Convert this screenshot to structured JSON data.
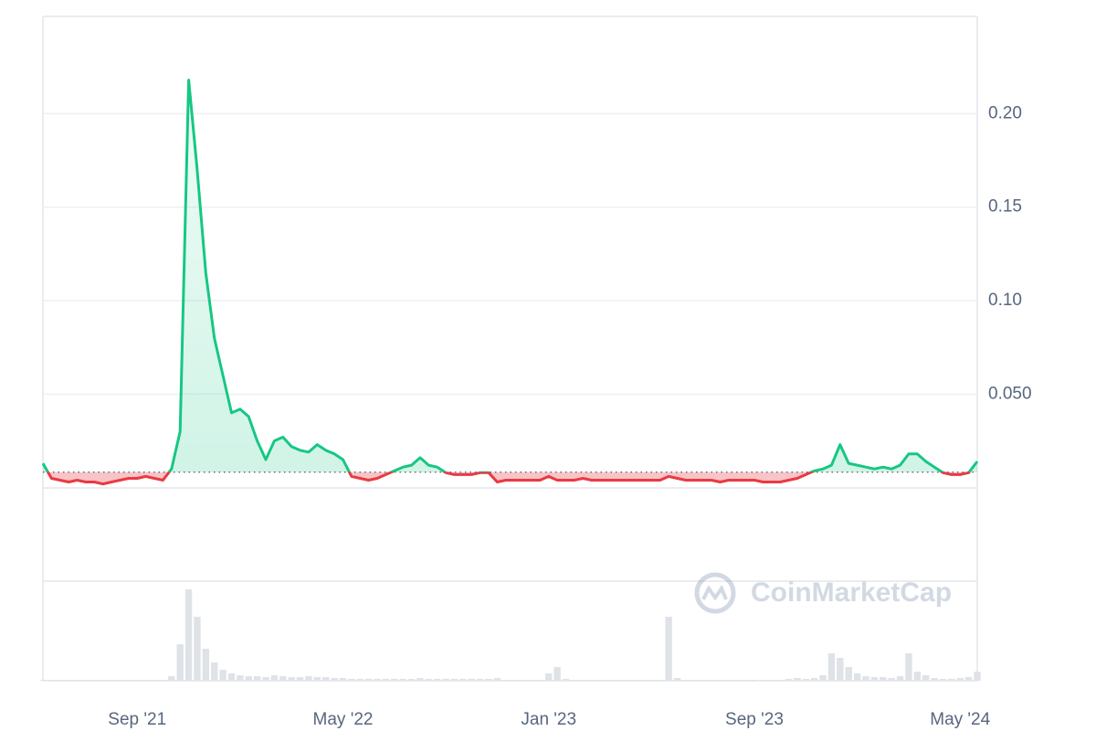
{
  "chart_data": {
    "type": "line",
    "watermark": "CoinMarketCap",
    "x": [
      "2021-05",
      "2021-05",
      "2021-06",
      "2021-06",
      "2021-06",
      "2021-07",
      "2021-07",
      "2021-07",
      "2021-08",
      "2021-08",
      "2021-08",
      "2021-09",
      "2021-09",
      "2021-09",
      "2021-10",
      "2021-10",
      "2021-10",
      "2021-11",
      "2021-11",
      "2021-11",
      "2021-12",
      "2021-12",
      "2021-12",
      "2022-01",
      "2022-01",
      "2022-01",
      "2022-02",
      "2022-02",
      "2022-02",
      "2022-03",
      "2022-03",
      "2022-03",
      "2022-04",
      "2022-04",
      "2022-04",
      "2022-05",
      "2022-05",
      "2022-05",
      "2022-06",
      "2022-06",
      "2022-06",
      "2022-07",
      "2022-07",
      "2022-07",
      "2022-08",
      "2022-08",
      "2022-08",
      "2022-09",
      "2022-09",
      "2022-09",
      "2022-10",
      "2022-10",
      "2022-10",
      "2022-11",
      "2022-11",
      "2022-11",
      "2022-12",
      "2022-12",
      "2022-12",
      "2023-01",
      "2023-01",
      "2023-01",
      "2023-02",
      "2023-02",
      "2023-02",
      "2023-03",
      "2023-03",
      "2023-03",
      "2023-04",
      "2023-04",
      "2023-04",
      "2023-05",
      "2023-05",
      "2023-05",
      "2023-06",
      "2023-06",
      "2023-06",
      "2023-07",
      "2023-07",
      "2023-07",
      "2023-08",
      "2023-08",
      "2023-08",
      "2023-09",
      "2023-09",
      "2023-09",
      "2023-10",
      "2023-10",
      "2023-10",
      "2023-11",
      "2023-11",
      "2023-11",
      "2023-12",
      "2023-12",
      "2023-12",
      "2024-01",
      "2024-01",
      "2024-01",
      "2024-02",
      "2024-02",
      "2024-02",
      "2024-03",
      "2024-03",
      "2024-03",
      "2024-04",
      "2024-04",
      "2024-04",
      "2024-05",
      "2024-05",
      "2024-05"
    ],
    "values": [
      0.013,
      0.005,
      0.004,
      0.003,
      0.004,
      0.003,
      0.003,
      0.002,
      0.003,
      0.004,
      0.005,
      0.005,
      0.006,
      0.005,
      0.004,
      0.01,
      0.03,
      0.218,
      0.17,
      0.115,
      0.08,
      0.06,
      0.04,
      0.042,
      0.038,
      0.025,
      0.015,
      0.025,
      0.027,
      0.022,
      0.02,
      0.019,
      0.023,
      0.02,
      0.018,
      0.015,
      0.006,
      0.005,
      0.004,
      0.005,
      0.007,
      0.009,
      0.011,
      0.012,
      0.016,
      0.012,
      0.011,
      0.008,
      0.007,
      0.007,
      0.007,
      0.008,
      0.008,
      0.003,
      0.004,
      0.004,
      0.004,
      0.004,
      0.004,
      0.006,
      0.004,
      0.004,
      0.004,
      0.005,
      0.004,
      0.004,
      0.004,
      0.004,
      0.004,
      0.004,
      0.004,
      0.004,
      0.004,
      0.006,
      0.005,
      0.004,
      0.004,
      0.004,
      0.004,
      0.003,
      0.004,
      0.004,
      0.004,
      0.004,
      0.003,
      0.003,
      0.003,
      0.004,
      0.005,
      0.007,
      0.009,
      0.01,
      0.012,
      0.023,
      0.013,
      0.012,
      0.011,
      0.01,
      0.011,
      0.01,
      0.012,
      0.018,
      0.018,
      0.014,
      0.011,
      0.008,
      0.007,
      0.007,
      0.008,
      0.014
    ],
    "volume": [
      1,
      1,
      1,
      1,
      1,
      1,
      1,
      1,
      1,
      1,
      1,
      1,
      1,
      1,
      1,
      5,
      40,
      100,
      70,
      35,
      20,
      12,
      8,
      6,
      5,
      5,
      4,
      6,
      5,
      4,
      4,
      5,
      4,
      4,
      3,
      3,
      2,
      2,
      2,
      2,
      2,
      2,
      2,
      2,
      3,
      2,
      2,
      2,
      2,
      2,
      2,
      2,
      2,
      3,
      1,
      1,
      1,
      1,
      1,
      8,
      15,
      2,
      1,
      1,
      1,
      1,
      1,
      1,
      1,
      1,
      1,
      1,
      1,
      70,
      3,
      1,
      1,
      1,
      1,
      1,
      1,
      1,
      1,
      1,
      1,
      1,
      1,
      2,
      3,
      2,
      3,
      6,
      30,
      25,
      15,
      8,
      5,
      4,
      4,
      3,
      5,
      30,
      10,
      6,
      3,
      2,
      2,
      3,
      4,
      10
    ],
    "baseline": 0.0083,
    "color_up": "#16c784",
    "color_down": "#ea3943",
    "volume_color": "#dfe3e8",
    "xlim": [
      0,
      109
    ],
    "xticks": [
      {
        "value": 11,
        "label": "Sep '21"
      },
      {
        "value": 35,
        "label": "May '22"
      },
      {
        "value": 59,
        "label": "Jan '23"
      },
      {
        "value": 83,
        "label": "Sep '23"
      },
      {
        "value": 107,
        "label": "May '24"
      }
    ],
    "ylim": [
      -0.05,
      0.252
    ],
    "yticks": [
      {
        "value": 0.05,
        "label": "0.050"
      },
      {
        "value": 0.1,
        "label": "0.10"
      },
      0.15,
      {
        "value": 0.2,
        "label": "0.20"
      }
    ],
    "grid": true
  }
}
